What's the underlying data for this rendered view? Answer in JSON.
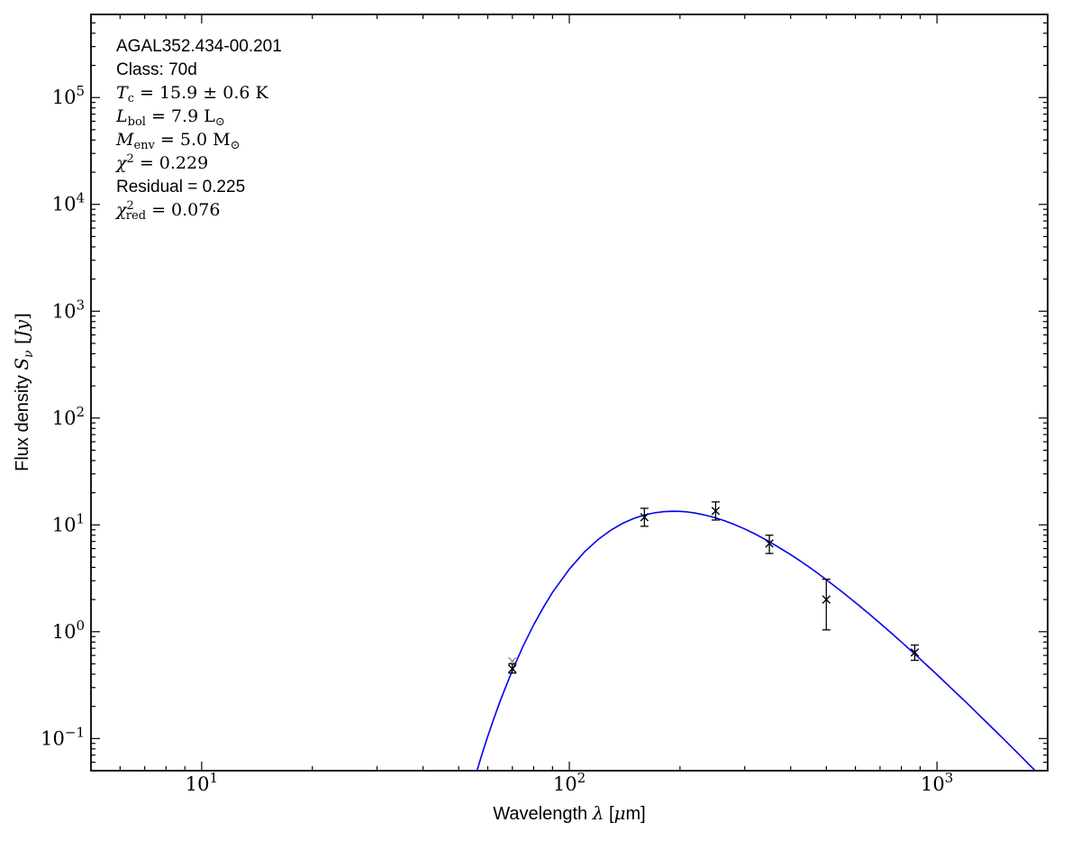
{
  "figure": {
    "background": "#ffffff",
    "annotation_lines": [
      {
        "name": "source-name",
        "parts": [
          [
            "AGAL352.434-00.201",
            "sans"
          ]
        ]
      },
      {
        "name": "class-label",
        "parts": [
          [
            "Class: 70d",
            "sans"
          ]
        ]
      },
      {
        "name": "temperature",
        "parts": [
          [
            "T",
            "it"
          ],
          [
            "c",
            "sub"
          ],
          [
            " = 15.9 ± 0.6 K",
            "rm"
          ]
        ]
      },
      {
        "name": "luminosity",
        "parts": [
          [
            "L",
            "it"
          ],
          [
            "bol",
            "sub"
          ],
          [
            " = 7.9 L",
            "rm"
          ],
          [
            "⊙",
            "sub"
          ]
        ]
      },
      {
        "name": "envelope-mass",
        "parts": [
          [
            "M",
            "it"
          ],
          [
            "env",
            "sub"
          ],
          [
            " = 5.0 M",
            "rm"
          ],
          [
            "⊙",
            "sub"
          ]
        ]
      },
      {
        "name": "chi-squared",
        "parts": [
          [
            "χ",
            "it"
          ],
          [
            "2",
            "sup"
          ],
          [
            " = 0.229",
            "rm"
          ]
        ]
      },
      {
        "name": "residual",
        "parts": [
          [
            "Residual = 0.225",
            "sans"
          ]
        ]
      },
      {
        "name": "chi-squared-reduced",
        "parts": [
          [
            "χ",
            "it"
          ],
          [
            "2",
            "sup"
          ],
          [
            "red",
            "subtight"
          ],
          [
            " = 0.076",
            "rm"
          ]
        ]
      }
    ]
  },
  "chart_data": {
    "type": "line",
    "title": "",
    "xlabel": "Wavelength λ [μm]",
    "ylabel": "Flux density Sν [Jy]",
    "xlabel_parts": [
      [
        "Wavelength ",
        "sans"
      ],
      [
        "λ",
        "it"
      ],
      [
        " [",
        "sans"
      ],
      [
        "μ",
        "it"
      ],
      [
        "m]",
        "sans"
      ]
    ],
    "ylabel_parts": [
      [
        "Flux density ",
        "sans"
      ],
      [
        "S",
        "it"
      ],
      [
        "ν",
        "subit"
      ],
      [
        " [",
        "rm"
      ],
      [
        "Jy",
        "it"
      ],
      [
        "]",
        "rm"
      ]
    ],
    "xscale": "log",
    "yscale": "log",
    "xlim": [
      5,
      2000
    ],
    "ylim": [
      0.05,
      600000
    ],
    "x_tick_exponents": [
      1,
      2,
      3
    ],
    "y_tick_exponents": [
      -1,
      0,
      1,
      2,
      3,
      4,
      5
    ],
    "grid": false,
    "legend": "none",
    "axis_color": "#000000",
    "fit_parameters": {
      "source": "AGAL352.434-00.201",
      "class": "70d",
      "T_c_K": "15.9 ± 0.6",
      "L_bol_Lsun": 7.9,
      "M_env_Msun": 5.0,
      "chi2": 0.229,
      "residual": 0.225,
      "chi2_red": 0.076
    },
    "series": [
      {
        "name": "greybody-fit-curve",
        "kind": "model-curve",
        "color": "#0000ee",
        "points": [
          [
            55,
            0.04
          ],
          [
            58,
            0.073
          ],
          [
            60,
            0.105
          ],
          [
            62,
            0.146
          ],
          [
            65,
            0.229
          ],
          [
            70,
            0.436
          ],
          [
            75,
            0.741
          ],
          [
            80,
            1.16
          ],
          [
            85,
            1.691
          ],
          [
            90,
            2.335
          ],
          [
            100,
            3.848
          ],
          [
            110,
            5.589
          ],
          [
            120,
            7.342
          ],
          [
            130,
            8.965
          ],
          [
            140,
            10.376
          ],
          [
            150,
            11.518
          ],
          [
            160,
            12.356
          ],
          [
            170,
            12.944
          ],
          [
            180,
            13.285
          ],
          [
            190,
            13.4
          ],
          [
            200,
            13.374
          ],
          [
            210,
            13.207
          ],
          [
            220,
            12.904
          ],
          [
            235,
            12.32
          ],
          [
            250,
            11.64
          ],
          [
            265,
            10.894
          ],
          [
            280,
            10.143
          ],
          [
            300,
            9.157
          ],
          [
            320,
            8.219
          ],
          [
            350,
            6.964
          ],
          [
            400,
            5.264
          ],
          [
            430,
            4.463
          ],
          [
            450,
            4.002
          ],
          [
            470,
            3.597
          ],
          [
            500,
            3.071
          ],
          [
            550,
            2.385
          ],
          [
            600,
            1.875
          ],
          [
            650,
            1.492
          ],
          [
            700,
            1.2
          ],
          [
            750,
            0.977
          ],
          [
            800,
            0.802
          ],
          [
            870,
            0.618
          ],
          [
            950,
            0.467
          ],
          [
            1000,
            0.397
          ],
          [
            1100,
            0.29
          ],
          [
            1200,
            0.218
          ],
          [
            1350,
            0.147
          ],
          [
            1500,
            0.103
          ],
          [
            1700,
            0.067
          ],
          [
            2000,
            0.038
          ]
        ]
      },
      {
        "name": "photometry-points",
        "kind": "errorbar-scatter",
        "marker": "x",
        "points": [
          {
            "x": 70,
            "y": 0.53,
            "yerr_lo": null,
            "yerr_hi": null,
            "color": "#909090"
          },
          {
            "x": 70,
            "y": 0.45,
            "yerr_lo": 0.41,
            "yerr_hi": 0.5,
            "color": "#000000"
          },
          {
            "x": 160,
            "y": 11.8,
            "yerr_lo": 9.7,
            "yerr_hi": 14.3,
            "color": "#000000"
          },
          {
            "x": 250,
            "y": 13.5,
            "yerr_lo": 11.1,
            "yerr_hi": 16.4,
            "color": "#000000"
          },
          {
            "x": 350,
            "y": 6.7,
            "yerr_lo": 5.4,
            "yerr_hi": 8.0,
            "color": "#000000"
          },
          {
            "x": 500,
            "y": 2.0,
            "yerr_lo": 1.04,
            "yerr_hi": 3.1,
            "color": "#000000"
          },
          {
            "x": 870,
            "y": 0.64,
            "yerr_lo": 0.54,
            "yerr_hi": 0.75,
            "color": "#000000"
          }
        ]
      }
    ]
  }
}
